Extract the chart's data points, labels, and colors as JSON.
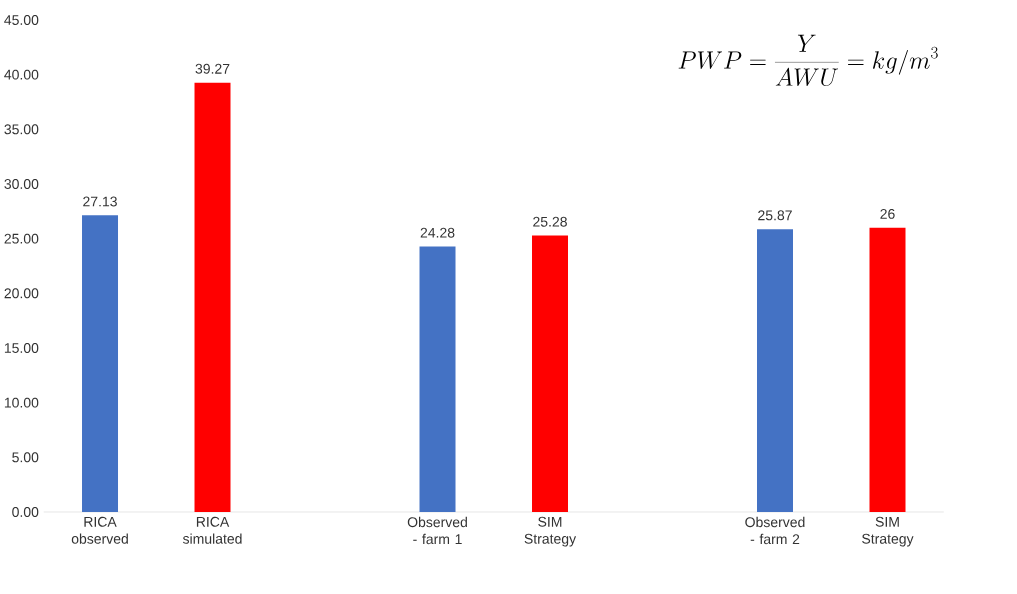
{
  "chart_data": {
    "type": "bar",
    "categories": [
      "RICA observed",
      "RICA simulated",
      null,
      "Observed - farm 1",
      "SIM Strategy",
      null,
      "Observed - farm 2",
      "SIM Strategy"
    ],
    "values": [
      27.13,
      39.27,
      null,
      24.28,
      25.28,
      null,
      25.87,
      26
    ],
    "value_labels": [
      "27.13",
      "39.27",
      null,
      "24.28",
      "25.28",
      null,
      "25.87",
      "26"
    ],
    "colors": [
      "#4472c4",
      "#ff0000",
      null,
      "#4472c4",
      "#ff0000",
      null,
      "#4472c4",
      "#ff0000"
    ],
    "ylim": [
      0,
      45
    ],
    "yticks": [
      {
        "value": 0,
        "label": "0.00"
      },
      {
        "value": 5,
        "label": "5.00"
      },
      {
        "value": 10,
        "label": "10.00"
      },
      {
        "value": 15,
        "label": "15.00"
      },
      {
        "value": 20,
        "label": "20.00"
      },
      {
        "value": 25,
        "label": "25.00"
      },
      {
        "value": 30,
        "label": "30.00"
      },
      {
        "value": 35,
        "label": "35.00"
      },
      {
        "value": 40,
        "label": "40.00"
      },
      {
        "value": 45,
        "label": "45.00"
      }
    ],
    "grid": false,
    "annotations": [
      "PWP=\\frac{Y}{AWU}=kg/m^3"
    ]
  }
}
